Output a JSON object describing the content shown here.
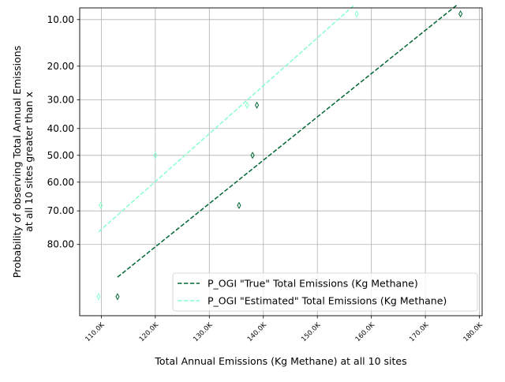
{
  "chart_data": {
    "type": "scatter",
    "title": "",
    "xlabel": "Total Annual Emissions (Kg Methane) at all 10 sites",
    "ylabel_lines": [
      "Probability of observing Total Annual Emissions",
      "at all 10 sites greater than x"
    ],
    "x_ticks": [
      {
        "value": 110000,
        "label": "110.0K"
      },
      {
        "value": 120000,
        "label": "120.0K"
      },
      {
        "value": 130000,
        "label": "130.0K"
      },
      {
        "value": 140000,
        "label": "140.0K"
      },
      {
        "value": 150000,
        "label": "150.0K"
      },
      {
        "value": 160000,
        "label": "160.0K"
      },
      {
        "value": 170000,
        "label": "170.0K"
      },
      {
        "value": 180000,
        "label": "180.0K"
      }
    ],
    "y_ticks": [
      {
        "value": 10,
        "label": "10.00"
      },
      {
        "value": 20,
        "label": "20.00"
      },
      {
        "value": 30,
        "label": "30.00"
      },
      {
        "value": 40,
        "label": "40.00"
      },
      {
        "value": 50,
        "label": "50.00"
      },
      {
        "value": 60,
        "label": "60.00"
      },
      {
        "value": 70,
        "label": "70.00"
      },
      {
        "value": 80,
        "label": "80.00"
      }
    ],
    "y_scale": "normal-probability",
    "y_inverted": true,
    "xlim": [
      106000,
      180500
    ],
    "ylim": [
      8.2,
      93.5
    ],
    "grid": true,
    "legend_position": "lower-right",
    "series": [
      {
        "name": "P_OGI \"True\" Total Emissions (Kg Methane)",
        "color": "#006633",
        "points": [
          {
            "x": 113000,
            "y": 90.9
          },
          {
            "x": 135500,
            "y": 68.2
          },
          {
            "x": 138000,
            "y": 50.0
          },
          {
            "x": 138800,
            "y": 31.8
          },
          {
            "x": 176500,
            "y": 9.1
          }
        ],
        "fit": [
          {
            "x": 113000,
            "y": 87.5
          },
          {
            "x": 176000,
            "y": 7.7
          }
        ]
      },
      {
        "name": "P_OGI \"Estimated\" Total Emissions (Kg Methane)",
        "color": "#88ffcc",
        "points": [
          {
            "x": 109500,
            "y": 90.9
          },
          {
            "x": 109900,
            "y": 68.2
          },
          {
            "x": 120000,
            "y": 50.0
          },
          {
            "x": 137000,
            "y": 31.8
          },
          {
            "x": 157300,
            "y": 9.1
          }
        ],
        "fit": [
          {
            "x": 109500,
            "y": 76.5
          },
          {
            "x": 156700,
            "y": 7.9
          }
        ]
      }
    ]
  }
}
